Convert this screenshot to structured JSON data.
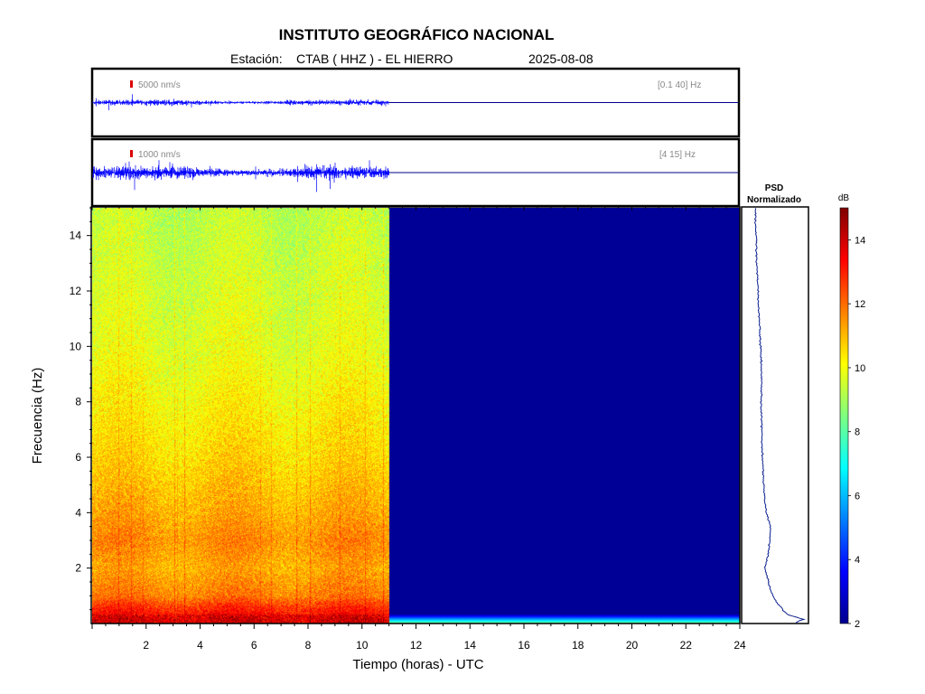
{
  "header": {
    "title": "INSTITUTO GEOGRÁFICO NACIONAL",
    "station_label": "Estación:",
    "station": "CTAB ( HHZ ) - EL HIERRO",
    "date": "2025-08-08"
  },
  "colors": {
    "trace": "#0000ff",
    "flat": "#00008f",
    "scale_mark": "#dd0000",
    "psd_line": "#0a1f8f",
    "frame": "#000000"
  },
  "chart_data": [
    {
      "type": "line",
      "name": "waveform-broadband",
      "scale_label": "5000 nm/s",
      "band_label": "[0.1 40] Hz",
      "x_unit": "horas",
      "data_until_hours": 11.0,
      "xlim": [
        0,
        24
      ]
    },
    {
      "type": "line",
      "name": "waveform-filtered",
      "scale_label": "1000 nm/s",
      "band_label": "[4 15] Hz",
      "x_unit": "horas",
      "data_until_hours": 11.0,
      "xlim": [
        0,
        24
      ]
    },
    {
      "type": "heatmap",
      "name": "spectrogram",
      "xlabel": "Tiempo (horas) - UTC",
      "ylabel": "Frecuencia  (Hz)",
      "xlim": [
        0,
        24
      ],
      "ylim": [
        0,
        15
      ],
      "xticks": [
        "2",
        "4",
        "6",
        "8",
        "10",
        "12",
        "14",
        "16",
        "18",
        "20",
        "22",
        "24"
      ],
      "yticks": [
        "2",
        "4",
        "6",
        "8",
        "10",
        "12",
        "14"
      ],
      "data_until_hours": 11.0,
      "band_levels_db": [
        {
          "f": 0.2,
          "db": 13.5
        },
        {
          "f": 0.6,
          "db": 12.8
        },
        {
          "f": 1.0,
          "db": 11.8
        },
        {
          "f": 2.0,
          "db": 11.2
        },
        {
          "f": 3.0,
          "db": 11.6
        },
        {
          "f": 4.0,
          "db": 11.2
        },
        {
          "f": 6.0,
          "db": 10.6
        },
        {
          "f": 8.0,
          "db": 10.2
        },
        {
          "f": 10.0,
          "db": 9.8
        },
        {
          "f": 12.0,
          "db": 9.6
        },
        {
          "f": 14.0,
          "db": 9.4
        },
        {
          "f": 15.0,
          "db": 9.3
        }
      ],
      "empty_level_db": 2.3,
      "grid": false
    },
    {
      "type": "line",
      "name": "psd",
      "title_line1": "PSD",
      "title_line2": "Normalizado",
      "ylim": [
        0,
        15
      ],
      "points": [
        {
          "f": 0.05,
          "v": 0.85
        },
        {
          "f": 0.15,
          "v": 0.95
        },
        {
          "f": 0.3,
          "v": 0.72
        },
        {
          "f": 0.5,
          "v": 0.62
        },
        {
          "f": 0.8,
          "v": 0.52
        },
        {
          "f": 1.2,
          "v": 0.43
        },
        {
          "f": 1.6,
          "v": 0.38
        },
        {
          "f": 2.0,
          "v": 0.34
        },
        {
          "f": 2.5,
          "v": 0.39
        },
        {
          "f": 3.0,
          "v": 0.42
        },
        {
          "f": 3.5,
          "v": 0.43
        },
        {
          "f": 4.0,
          "v": 0.36
        },
        {
          "f": 5.0,
          "v": 0.32
        },
        {
          "f": 6.0,
          "v": 0.3
        },
        {
          "f": 7.0,
          "v": 0.29
        },
        {
          "f": 8.0,
          "v": 0.28
        },
        {
          "f": 9.0,
          "v": 0.29
        },
        {
          "f": 10.0,
          "v": 0.27
        },
        {
          "f": 11.0,
          "v": 0.25
        },
        {
          "f": 12.0,
          "v": 0.23
        },
        {
          "f": 13.0,
          "v": 0.21
        },
        {
          "f": 14.0,
          "v": 0.2
        },
        {
          "f": 15.0,
          "v": 0.19
        }
      ]
    },
    {
      "type": "heatmap",
      "name": "colorbar",
      "label": "dB",
      "range": [
        2,
        15
      ],
      "ticks": [
        "2",
        "4",
        "6",
        "8",
        "10",
        "12",
        "14"
      ]
    }
  ]
}
